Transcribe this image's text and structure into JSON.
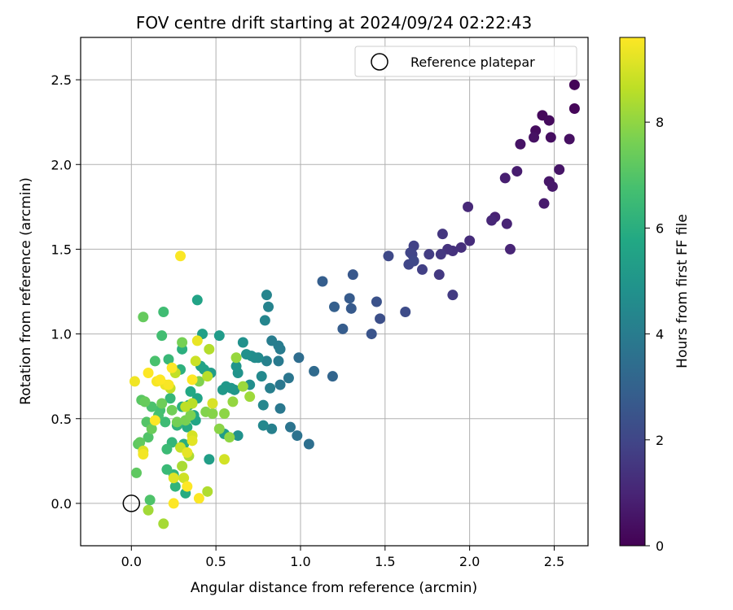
{
  "chart_data": {
    "type": "scatter",
    "title": "FOV centre drift starting at 2024/09/24 02:22:43",
    "xlabel": "Angular distance from reference (arcmin)",
    "ylabel": "Rotation from reference (arcmin)",
    "xlim": [
      -0.3,
      2.7
    ],
    "ylim": [
      -0.25,
      2.75
    ],
    "xticks": [
      0.0,
      0.5,
      1.0,
      1.5,
      2.0,
      2.5
    ],
    "yticks": [
      0.0,
      0.5,
      1.0,
      1.5,
      2.0,
      2.5
    ],
    "grid": true,
    "legend": {
      "placement": "top-right",
      "entries": [
        "Reference platepar"
      ]
    },
    "reference_point": {
      "x": 0.0,
      "y": 0.0,
      "label": "Reference platepar"
    },
    "colorbar": {
      "label": "Hours from first FF file",
      "min": 0,
      "max": 9.6,
      "ticks": [
        0,
        2,
        4,
        6,
        8
      ],
      "colormap": "viridis"
    },
    "series": [
      {
        "points": [
          [
            2.62,
            2.47,
            0.1
          ],
          [
            2.62,
            2.33,
            0.15
          ],
          [
            2.43,
            2.29,
            0.2
          ],
          [
            2.47,
            2.26,
            0.25
          ],
          [
            2.39,
            2.2,
            0.3
          ],
          [
            2.48,
            2.16,
            0.35
          ],
          [
            2.59,
            2.15,
            0.4
          ],
          [
            2.38,
            2.16,
            0.45
          ],
          [
            2.3,
            2.12,
            0.5
          ],
          [
            2.53,
            1.97,
            0.55
          ],
          [
            2.47,
            1.9,
            0.6
          ],
          [
            2.49,
            1.87,
            0.65
          ],
          [
            2.44,
            1.77,
            0.7
          ],
          [
            2.28,
            1.96,
            0.75
          ],
          [
            2.21,
            1.92,
            0.8
          ],
          [
            2.15,
            1.69,
            0.9
          ],
          [
            2.22,
            1.65,
            0.95
          ],
          [
            2.24,
            1.5,
            1.0
          ],
          [
            2.13,
            1.67,
            1.05
          ],
          [
            1.99,
            1.75,
            1.1
          ],
          [
            2.0,
            1.55,
            1.2
          ],
          [
            1.95,
            1.51,
            1.3
          ],
          [
            1.9,
            1.49,
            1.35
          ],
          [
            1.87,
            1.5,
            1.4
          ],
          [
            1.84,
            1.59,
            1.5
          ],
          [
            1.83,
            1.47,
            1.55
          ],
          [
            1.82,
            1.35,
            1.6
          ],
          [
            1.9,
            1.23,
            1.65
          ],
          [
            1.76,
            1.47,
            1.7
          ],
          [
            1.72,
            1.38,
            1.8
          ],
          [
            1.67,
            1.52,
            1.85
          ],
          [
            1.66,
            1.47,
            1.9
          ],
          [
            1.65,
            1.48,
            1.95
          ],
          [
            1.64,
            1.41,
            2.0
          ],
          [
            1.67,
            1.43,
            2.05
          ],
          [
            1.52,
            1.46,
            2.1
          ],
          [
            1.62,
            1.13,
            2.2
          ],
          [
            1.47,
            1.09,
            2.3
          ],
          [
            1.45,
            1.19,
            2.4
          ],
          [
            1.42,
            1.0,
            2.5
          ],
          [
            1.31,
            1.35,
            2.6
          ],
          [
            1.3,
            1.15,
            2.7
          ],
          [
            1.29,
            1.21,
            2.75
          ],
          [
            1.25,
            1.03,
            2.8
          ],
          [
            1.13,
            1.31,
            2.85
          ],
          [
            1.2,
            1.16,
            2.9
          ],
          [
            1.19,
            0.75,
            3.1
          ],
          [
            1.08,
            0.78,
            3.3
          ],
          [
            0.99,
            0.86,
            3.4
          ],
          [
            1.05,
            0.35,
            3.5
          ],
          [
            0.98,
            0.4,
            3.6
          ],
          [
            0.94,
            0.45,
            3.7
          ],
          [
            0.93,
            0.74,
            3.75
          ],
          [
            0.88,
            0.7,
            3.8
          ],
          [
            0.88,
            0.56,
            3.85
          ],
          [
            0.87,
            0.84,
            3.9
          ],
          [
            0.88,
            0.91,
            3.95
          ],
          [
            0.87,
            0.93,
            4.0
          ],
          [
            0.83,
            0.96,
            4.05
          ],
          [
            0.82,
            0.68,
            4.1
          ],
          [
            0.83,
            0.44,
            4.15
          ],
          [
            0.8,
            0.84,
            4.2
          ],
          [
            0.81,
            1.16,
            4.25
          ],
          [
            0.8,
            1.23,
            4.3
          ],
          [
            0.79,
            1.08,
            4.35
          ],
          [
            0.78,
            0.58,
            4.4
          ],
          [
            0.78,
            0.46,
            4.45
          ],
          [
            0.77,
            0.75,
            4.5
          ],
          [
            0.75,
            0.86,
            4.55
          ],
          [
            0.73,
            0.86,
            4.6
          ],
          [
            0.71,
            0.87,
            4.65
          ],
          [
            0.7,
            0.7,
            4.7
          ],
          [
            0.68,
            0.88,
            4.75
          ],
          [
            0.66,
            0.95,
            4.8
          ],
          [
            0.63,
            0.4,
            4.85
          ],
          [
            0.63,
            0.77,
            4.9
          ],
          [
            0.62,
            0.81,
            4.95
          ],
          [
            0.61,
            0.67,
            5.0
          ],
          [
            0.59,
            0.68,
            5.05
          ],
          [
            0.56,
            0.69,
            5.1
          ],
          [
            0.54,
            0.67,
            5.15
          ],
          [
            0.52,
            0.99,
            5.2
          ],
          [
            0.55,
            0.41,
            5.25
          ],
          [
            0.47,
            0.77,
            5.3
          ],
          [
            0.46,
            0.26,
            5.35
          ],
          [
            0.42,
            1.0,
            5.4
          ],
          [
            0.43,
            0.79,
            5.45
          ],
          [
            0.41,
            0.81,
            5.5
          ],
          [
            0.39,
            1.2,
            5.55
          ],
          [
            0.39,
            0.62,
            5.6
          ],
          [
            0.38,
            0.49,
            5.65
          ],
          [
            0.37,
            0.52,
            5.7
          ],
          [
            0.35,
            0.66,
            5.75
          ],
          [
            0.34,
            0.58,
            5.8
          ],
          [
            0.33,
            0.45,
            5.85
          ],
          [
            0.32,
            0.06,
            5.9
          ],
          [
            0.31,
            0.35,
            5.95
          ],
          [
            0.3,
            0.57,
            6.0
          ],
          [
            0.3,
            0.91,
            6.05
          ],
          [
            0.29,
            0.79,
            6.1
          ],
          [
            0.27,
            0.46,
            6.15
          ],
          [
            0.26,
            0.1,
            6.2
          ],
          [
            0.25,
            0.17,
            6.25
          ],
          [
            0.24,
            0.36,
            6.3
          ],
          [
            0.23,
            0.62,
            6.35
          ],
          [
            0.22,
            0.85,
            6.4
          ],
          [
            0.21,
            0.2,
            6.45
          ],
          [
            0.21,
            0.32,
            6.5
          ],
          [
            0.2,
            0.48,
            6.55
          ],
          [
            0.19,
            1.13,
            6.6
          ],
          [
            0.18,
            0.99,
            6.65
          ],
          [
            0.17,
            0.55,
            6.7
          ],
          [
            0.16,
            0.52,
            6.75
          ],
          [
            0.14,
            0.84,
            6.8
          ],
          [
            0.12,
            0.57,
            6.85
          ],
          [
            0.11,
            0.02,
            6.9
          ],
          [
            0.1,
            0.39,
            6.95
          ],
          [
            0.09,
            0.48,
            7.0
          ],
          [
            0.08,
            0.6,
            7.05
          ],
          [
            0.06,
            0.61,
            7.1
          ],
          [
            0.04,
            0.35,
            7.15
          ],
          [
            0.03,
            0.18,
            7.2
          ],
          [
            0.05,
            0.36,
            7.25
          ],
          [
            0.07,
            1.1,
            7.3
          ],
          [
            0.08,
            0.6,
            7.35
          ],
          [
            0.12,
            0.44,
            7.4
          ],
          [
            0.18,
            0.59,
            7.45
          ],
          [
            0.24,
            0.55,
            7.5
          ],
          [
            0.27,
            0.48,
            7.55
          ],
          [
            0.3,
            0.95,
            7.6
          ],
          [
            0.32,
            0.49,
            7.65
          ],
          [
            0.35,
            0.52,
            7.7
          ],
          [
            0.4,
            0.72,
            7.75
          ],
          [
            0.44,
            0.54,
            7.8
          ],
          [
            0.48,
            0.53,
            7.85
          ],
          [
            0.52,
            0.44,
            7.9
          ],
          [
            0.55,
            0.53,
            7.95
          ],
          [
            0.58,
            0.39,
            8.0
          ],
          [
            0.6,
            0.6,
            8.05
          ],
          [
            0.62,
            0.86,
            8.1
          ],
          [
            0.66,
            0.69,
            8.15
          ],
          [
            0.7,
            0.63,
            8.2
          ],
          [
            0.1,
            -0.04,
            8.25
          ],
          [
            0.19,
            -0.12,
            8.3
          ],
          [
            0.3,
            0.22,
            8.35
          ],
          [
            0.34,
            0.28,
            8.4
          ],
          [
            0.45,
            0.07,
            8.45
          ],
          [
            0.46,
            0.91,
            8.5
          ],
          [
            0.45,
            0.75,
            8.55
          ],
          [
            0.36,
            0.59,
            8.6
          ],
          [
            0.32,
            0.57,
            8.65
          ],
          [
            0.26,
            0.77,
            8.7
          ],
          [
            0.23,
            0.68,
            8.75
          ],
          [
            0.29,
            0.33,
            8.8
          ],
          [
            0.38,
            0.84,
            8.85
          ],
          [
            0.31,
            0.15,
            8.9
          ],
          [
            0.55,
            0.26,
            8.95
          ],
          [
            0.36,
            0.4,
            9.0
          ],
          [
            0.48,
            0.59,
            9.05
          ],
          [
            0.07,
            0.31,
            9.1
          ],
          [
            0.25,
            0.15,
            9.15
          ],
          [
            0.36,
            0.37,
            9.2
          ],
          [
            0.33,
            0.3,
            9.25
          ],
          [
            0.39,
            0.96,
            9.3
          ],
          [
            0.2,
            0.7,
            9.35
          ],
          [
            0.02,
            0.72,
            9.4
          ],
          [
            0.07,
            0.29,
            9.45
          ],
          [
            0.15,
            0.72,
            9.5
          ],
          [
            0.22,
            0.7,
            9.52
          ],
          [
            0.29,
            1.46,
            9.55
          ],
          [
            0.4,
            0.03,
            9.57
          ],
          [
            0.1,
            0.77,
            9.58
          ],
          [
            0.14,
            0.49,
            9.59
          ],
          [
            0.24,
            0.8,
            9.6
          ],
          [
            0.33,
            0.1,
            9.6
          ],
          [
            0.17,
            0.73,
            9.6
          ],
          [
            0.25,
            0.0,
            9.6
          ],
          [
            0.36,
            0.73,
            9.6
          ]
        ]
      }
    ]
  }
}
